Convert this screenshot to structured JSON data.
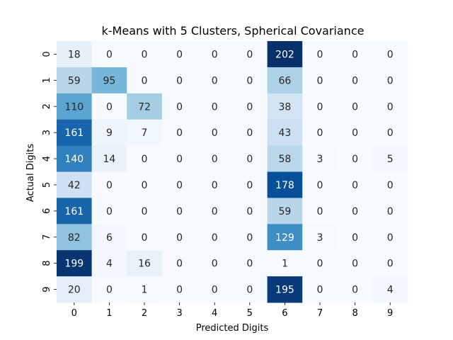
{
  "chart_data": {
    "type": "heatmap",
    "title": "k-Means with 5 Clusters, Spherical Covariance",
    "xlabel": "Predicted Digits",
    "ylabel": "Actual Digits",
    "x_categories": [
      "0",
      "1",
      "2",
      "3",
      "4",
      "5",
      "6",
      "7",
      "8",
      "9"
    ],
    "y_categories": [
      "0",
      "1",
      "2",
      "3",
      "4",
      "5",
      "6",
      "7",
      "8",
      "9"
    ],
    "values": [
      [
        18,
        0,
        0,
        0,
        0,
        0,
        202,
        0,
        0,
        0
      ],
      [
        59,
        95,
        0,
        0,
        0,
        0,
        66,
        0,
        0,
        0
      ],
      [
        110,
        0,
        72,
        0,
        0,
        0,
        38,
        0,
        0,
        0
      ],
      [
        161,
        9,
        7,
        0,
        0,
        0,
        43,
        0,
        0,
        0
      ],
      [
        140,
        14,
        0,
        0,
        0,
        0,
        58,
        3,
        0,
        5
      ],
      [
        42,
        0,
        0,
        0,
        0,
        0,
        178,
        0,
        0,
        0
      ],
      [
        161,
        0,
        0,
        0,
        0,
        0,
        59,
        0,
        0,
        0
      ],
      [
        82,
        6,
        0,
        0,
        0,
        0,
        129,
        3,
        0,
        0
      ],
      [
        199,
        4,
        16,
        0,
        0,
        0,
        1,
        0,
        0,
        0
      ],
      [
        20,
        0,
        1,
        0,
        0,
        0,
        195,
        0,
        0,
        4
      ]
    ],
    "colormap": "Blues",
    "vmin": 0,
    "vmax": 202,
    "colorbar": false,
    "grid": false
  },
  "colors": {
    "low": "#f7fbff",
    "high": "#08306b",
    "text_dark": "#262626",
    "text_light": "#ffffff"
  }
}
